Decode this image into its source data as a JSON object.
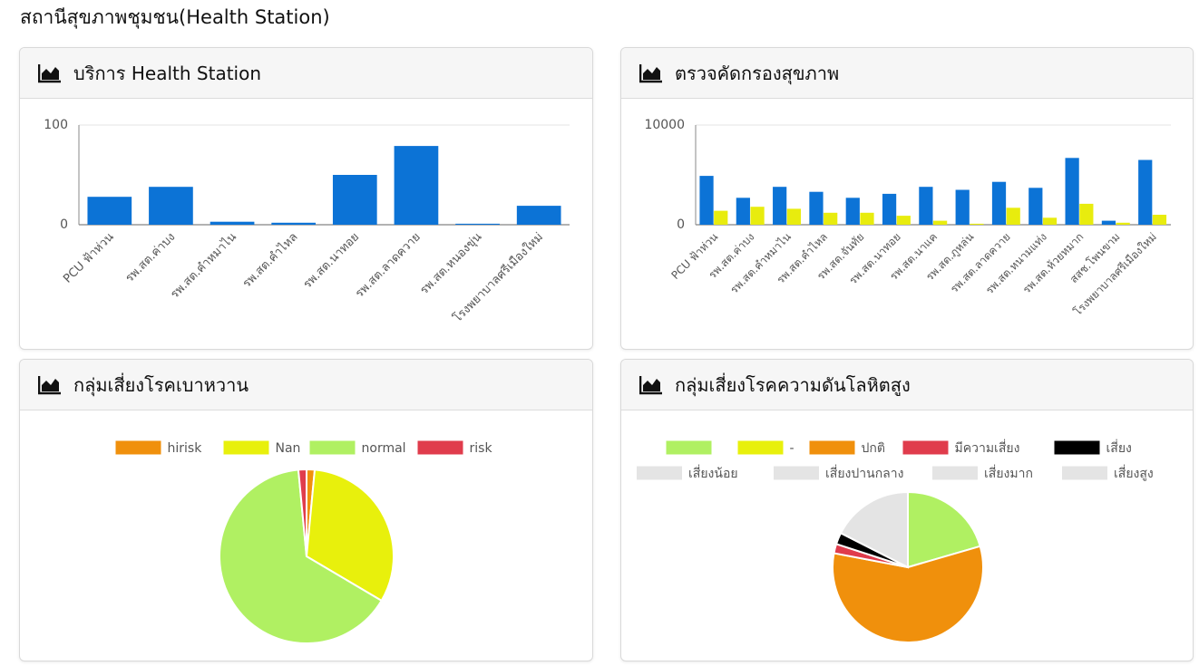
{
  "page": {
    "title": "สถานีสุขภาพชุมชน(Health Station)"
  },
  "icon": "area-chart-icon",
  "colors": {
    "blue": "#0c73d6",
    "yellow": "#e8ec0e",
    "grid": "#e6e6e6",
    "axis": "#555555",
    "hirisk": "#f0900c",
    "nan": "#e8f00c",
    "normal": "#b0f062",
    "risk": "#e03c4c",
    "black": "#000000",
    "grey": "#e4e4e4"
  },
  "chart_data": [
    {
      "type": "bar",
      "title": "บริการ Health Station",
      "categories": [
        "PCU ฟ้าห่วน",
        "รพ.สต.ค่าบง",
        "รพ.สต.คำหมาไน",
        "รพ.สต.คำไหล",
        "รพ.สต.นาทอย",
        "รพ.สต.ลาดควาย",
        "รพ.สต.หนองขุ่น",
        "โรงพยาบาลศรีเมืองใหม่"
      ],
      "series": [
        {
          "values": [
            28,
            38,
            3,
            2,
            50,
            79,
            1,
            19
          ]
        }
      ],
      "ylim": [
        0,
        100
      ],
      "yticks": [
        0,
        100
      ],
      "grid": true
    },
    {
      "type": "bar",
      "title": "ตรวจคัดกรองสุขภาพ",
      "categories": [
        "PCU ฟ้าห่วน",
        "รพ.สต.ค่าบง",
        "รพ.สต.คำหมาไน",
        "รพ.สต.คำไหล",
        "รพ.สต.จันทัย",
        "รพ.สต.นาทอย",
        "รพ.สต.นาแค",
        "รพ.สต.ภูหล่น",
        "รพ.สต.ลาดควาย",
        "รพ.สต.หนามแท่ง",
        "รพ.สต.ห้วยหมาก",
        "สสช.โพนขาม",
        "โรงพยาบาลศรีเมืองใหม่"
      ],
      "series": [
        {
          "values": [
            4900,
            2700,
            3800,
            3300,
            2700,
            3100,
            3800,
            3500,
            4300,
            3700,
            6700,
            400,
            6500
          ]
        },
        {
          "values": [
            1400,
            1800,
            1600,
            1200,
            1200,
            900,
            400,
            100,
            1700,
            700,
            2100,
            200,
            1000
          ]
        }
      ],
      "ylim": [
        0,
        10000
      ],
      "yticks": [
        0,
        10000
      ],
      "grid": true
    },
    {
      "type": "pie",
      "title": "กลุ่มเสี่ยงโรคเบาหวาน",
      "legend_position": "top",
      "slices": [
        {
          "label": "hirisk",
          "value": 1.5,
          "color": "#f0900c"
        },
        {
          "label": "Nan",
          "value": 32,
          "color": "#e8f00c"
        },
        {
          "label": "normal",
          "value": 65,
          "color": "#b0f062"
        },
        {
          "label": "risk",
          "value": 1.5,
          "color": "#e03c4c"
        }
      ]
    },
    {
      "type": "pie",
      "title": "กลุ่มเสี่ยงโรคความดันโลหิตสูง",
      "legend_position": "top",
      "slices": [
        {
          "label": "",
          "value": 20.5,
          "color": "#b0f062"
        },
        {
          "label": "-",
          "value": 0,
          "color": "#e8f00c"
        },
        {
          "label": "ปกติ",
          "value": 57.5,
          "color": "#f0900c"
        },
        {
          "label": "มีความเสี่ยง",
          "value": 2,
          "color": "#e03c4c"
        },
        {
          "label": "เสี่ยง",
          "value": 2.5,
          "color": "#000000"
        },
        {
          "label": "เสี่ยงน้อย",
          "value": 17.5,
          "color": "#e4e4e4"
        },
        {
          "label": "เสี่ยงปานกลาง",
          "value": 0,
          "color": "#e4e4e4"
        },
        {
          "label": "เสี่ยงมาก",
          "value": 0,
          "color": "#e4e4e4"
        },
        {
          "label": "เสี่ยงสูง",
          "value": 0,
          "color": "#e4e4e4"
        }
      ]
    }
  ]
}
